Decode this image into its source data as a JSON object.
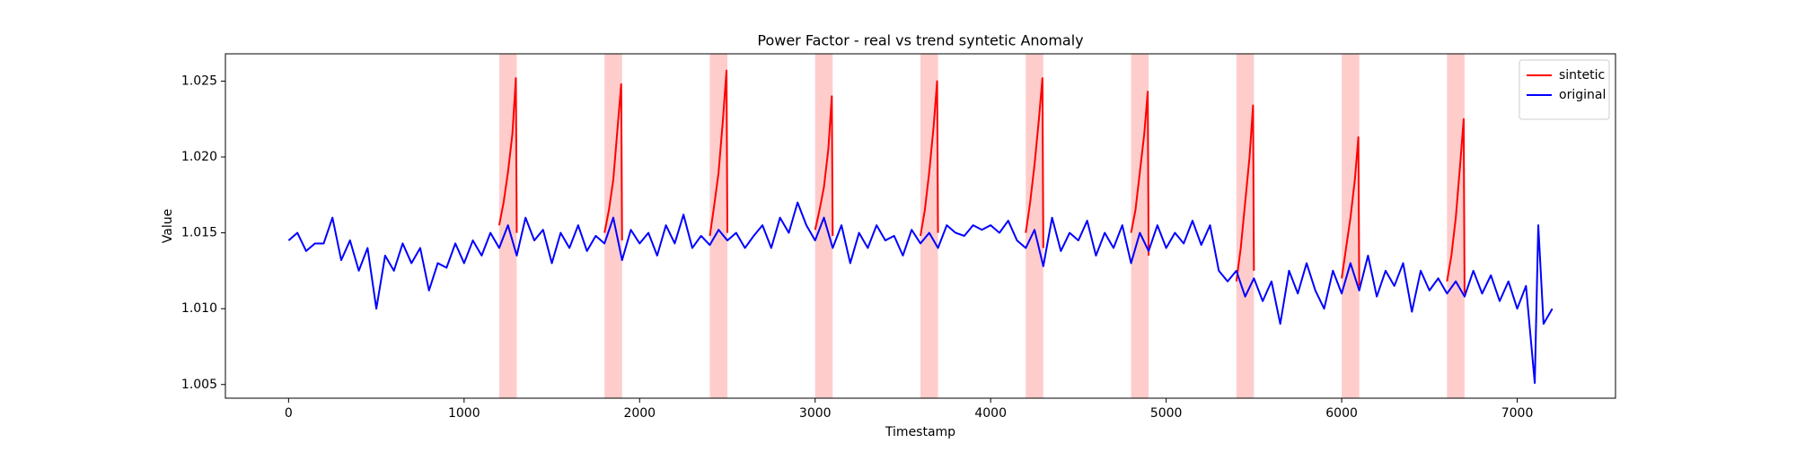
{
  "chart_data": {
    "type": "line",
    "title": "Power Factor - real vs trend syntetic Anomaly",
    "xlabel": "Timestamp",
    "ylabel": "Value",
    "xlim": [
      -360,
      7560
    ],
    "ylim": [
      1.0041,
      1.0268
    ],
    "xticks": [
      0,
      1000,
      2000,
      3000,
      4000,
      5000,
      6000,
      7000
    ],
    "yticks": [
      1.005,
      {
        "value": 1.01,
        "label": "1.010"
      },
      1.015,
      {
        "value": 1.02,
        "label": "1.020"
      },
      1.025
    ],
    "legend": "upper right",
    "anomaly_color": "#ff0000",
    "anomaly_regions": [
      [
        1200,
        1300
      ],
      [
        1800,
        1900
      ],
      [
        2400,
        2500
      ],
      [
        3000,
        3100
      ],
      [
        3600,
        3700
      ],
      [
        4200,
        4300
      ],
      [
        4800,
        4900
      ],
      [
        5400,
        5500
      ],
      [
        6000,
        6100
      ],
      [
        6600,
        6700
      ]
    ],
    "series": [
      {
        "name": "sintetic",
        "color": "#ff0000",
        "x": [
          1200,
          1225,
          1250,
          1275,
          1295,
          1300,
          1350,
          1800,
          1825,
          1850,
          1875,
          1895,
          1900,
          1950,
          2400,
          2425,
          2450,
          2475,
          2495,
          2500,
          2550,
          3000,
          3025,
          3050,
          3075,
          3095,
          3100,
          3150,
          3600,
          3625,
          3650,
          3675,
          3695,
          3700,
          3750,
          4200,
          4225,
          4250,
          4275,
          4295,
          4300,
          4350,
          4800,
          4825,
          4850,
          4875,
          4895,
          4900,
          4950,
          5400,
          5425,
          5450,
          5475,
          5495,
          5500,
          5550,
          6000,
          6025,
          6050,
          6075,
          6095,
          6100,
          6150,
          6600,
          6625,
          6650,
          6675,
          6695,
          6700
        ],
        "values": [
          1.0155,
          1.017,
          1.019,
          1.0215,
          1.0252,
          1.015,
          null,
          1.015,
          1.0165,
          1.0185,
          1.022,
          1.0248,
          1.0145,
          null,
          1.0148,
          1.0168,
          1.019,
          1.0225,
          1.0257,
          1.015,
          null,
          1.0152,
          1.0165,
          1.018,
          1.0205,
          1.024,
          1.0148,
          null,
          1.0148,
          1.0165,
          1.019,
          1.022,
          1.025,
          1.015,
          null,
          1.015,
          1.017,
          1.0195,
          1.0225,
          1.0252,
          1.014,
          null,
          1.015,
          1.0165,
          1.019,
          1.0215,
          1.0243,
          1.0135,
          null,
          1.0118,
          1.014,
          1.017,
          1.02,
          1.0234,
          1.0125,
          null,
          1.012,
          1.014,
          1.016,
          1.0185,
          1.0213,
          1.0115,
          null,
          1.0118,
          1.0135,
          1.016,
          1.0195,
          1.0225,
          1.011
        ]
      },
      {
        "name": "original",
        "color": "#0000ff",
        "x": [
          0,
          50,
          100,
          150,
          200,
          250,
          300,
          350,
          400,
          450,
          500,
          550,
          600,
          650,
          700,
          750,
          800,
          850,
          900,
          950,
          1000,
          1050,
          1100,
          1150,
          1200,
          1250,
          1300,
          1350,
          1400,
          1450,
          1500,
          1550,
          1600,
          1650,
          1700,
          1750,
          1800,
          1850,
          1900,
          1950,
          2000,
          2050,
          2100,
          2150,
          2200,
          2250,
          2300,
          2350,
          2400,
          2450,
          2500,
          2550,
          2600,
          2650,
          2700,
          2750,
          2800,
          2850,
          2900,
          2950,
          3000,
          3050,
          3100,
          3150,
          3200,
          3250,
          3300,
          3350,
          3400,
          3450,
          3500,
          3550,
          3600,
          3650,
          3700,
          3750,
          3800,
          3850,
          3900,
          3950,
          4000,
          4050,
          4100,
          4150,
          4200,
          4250,
          4300,
          4350,
          4400,
          4450,
          4500,
          4550,
          4600,
          4650,
          4700,
          4750,
          4800,
          4850,
          4900,
          4950,
          5000,
          5050,
          5100,
          5150,
          5200,
          5250,
          5300,
          5350,
          5400,
          5450,
          5500,
          5550,
          5600,
          5650,
          5700,
          5750,
          5800,
          5850,
          5900,
          5950,
          6000,
          6050,
          6100,
          6150,
          6200,
          6250,
          6300,
          6350,
          6400,
          6450,
          6500,
          6550,
          6600,
          6650,
          6700,
          6750,
          6800,
          6850,
          6900,
          6950,
          7000,
          7050,
          7100,
          7120,
          7150,
          7200
        ],
        "values": [
          1.0145,
          1.015,
          1.0138,
          1.0143,
          1.0143,
          1.016,
          1.0132,
          1.0145,
          1.0125,
          1.014,
          1.01,
          1.0135,
          1.0125,
          1.0143,
          1.013,
          1.014,
          1.0112,
          1.013,
          1.0127,
          1.0143,
          1.013,
          1.0145,
          1.0135,
          1.015,
          1.014,
          1.0155,
          1.0135,
          1.016,
          1.0145,
          1.0152,
          1.013,
          1.015,
          1.014,
          1.0155,
          1.0138,
          1.0148,
          1.0143,
          1.016,
          1.0132,
          1.0152,
          1.0143,
          1.015,
          1.0135,
          1.0155,
          1.0143,
          1.0162,
          1.014,
          1.0148,
          1.0142,
          1.0152,
          1.0145,
          1.015,
          1.014,
          1.0148,
          1.0155,
          1.014,
          1.016,
          1.015,
          1.017,
          1.0155,
          1.0145,
          1.016,
          1.014,
          1.0155,
          1.013,
          1.015,
          1.014,
          1.0155,
          1.0145,
          1.0148,
          1.0135,
          1.0152,
          1.0143,
          1.015,
          1.014,
          1.0155,
          1.015,
          1.0148,
          1.0155,
          1.0152,
          1.0155,
          1.015,
          1.0158,
          1.0145,
          1.014,
          1.0152,
          1.0128,
          1.016,
          1.0138,
          1.015,
          1.0145,
          1.0158,
          1.0135,
          1.015,
          1.014,
          1.0155,
          1.013,
          1.015,
          1.0138,
          1.0155,
          1.014,
          1.015,
          1.0143,
          1.0158,
          1.0142,
          1.0155,
          1.0125,
          1.0118,
          1.0125,
          1.0108,
          1.012,
          1.0105,
          1.0118,
          1.009,
          1.0125,
          1.011,
          1.013,
          1.0112,
          1.01,
          1.0125,
          1.011,
          1.013,
          1.0112,
          1.0135,
          1.0108,
          1.0125,
          1.0115,
          1.013,
          1.0098,
          1.0125,
          1.0112,
          1.012,
          1.011,
          1.0118,
          1.0108,
          1.0125,
          1.011,
          1.0122,
          1.0105,
          1.0118,
          1.01,
          1.0115,
          1.0051,
          1.0155,
          1.009,
          1.01
        ]
      }
    ]
  }
}
